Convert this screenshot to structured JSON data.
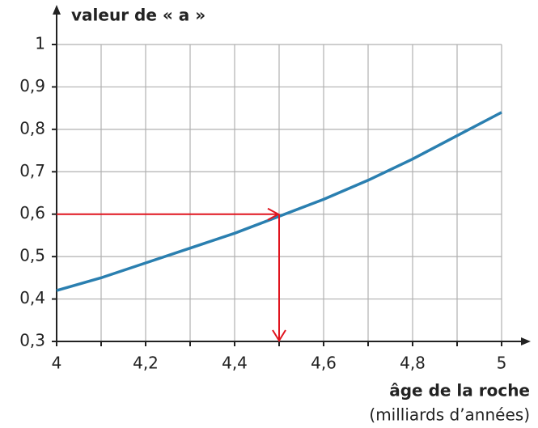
{
  "chart_data": {
    "type": "line",
    "ylabel": "valeur de « a »",
    "xlabel": "âge de la roche",
    "xlabel_unit": "(milliards d’années)",
    "x": [
      4,
      4.1,
      4.2,
      4.3,
      4.4,
      4.5,
      4.6,
      4.7,
      4.8,
      4.9,
      5
    ],
    "series": [
      {
        "color": "#2a7fb0",
        "values": [
          0.42,
          0.45,
          0.485,
          0.52,
          0.555,
          0.595,
          0.635,
          0.68,
          0.73,
          0.785,
          0.84
        ]
      }
    ],
    "xlim": [
      4,
      5
    ],
    "ylim": [
      0.3,
      1
    ],
    "xticks": [
      4,
      {
        "value": 4.2,
        "label": "4,2"
      },
      {
        "value": 4.4,
        "label": "4,4"
      },
      {
        "value": 4.6,
        "label": "4,6"
      },
      {
        "value": 4.8,
        "label": "4,8"
      },
      5
    ],
    "xminor": [
      4.1,
      4.3,
      4.5,
      4.7,
      4.9
    ],
    "yticks": [
      {
        "value": 0.3,
        "label": "0,3"
      },
      {
        "value": 0.4,
        "label": "0,4"
      },
      {
        "value": 0.5,
        "label": "0,5"
      },
      {
        "value": 0.6,
        "label": "0,6"
      },
      {
        "value": 0.7,
        "label": "0,7"
      },
      {
        "value": 0.8,
        "label": "0,8"
      },
      {
        "value": 0.9,
        "label": "0,9"
      },
      1
    ],
    "grid": true,
    "reading": {
      "x": 4.5,
      "y": 0.6,
      "color": "#e0141e"
    }
  }
}
